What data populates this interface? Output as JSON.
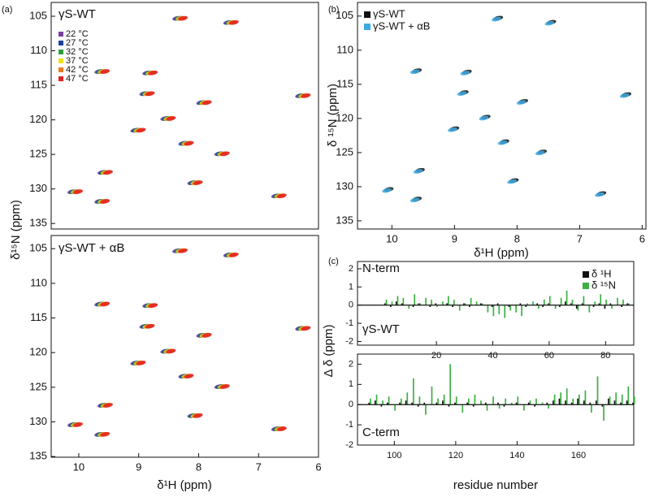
{
  "chart_data": [
    {
      "type": "scatter",
      "panel_label": "(a)",
      "title": "γS-WT",
      "xlim": [
        10.46,
        6
      ],
      "ylim": [
        135.8,
        103
      ],
      "yticks": [
        105,
        110,
        115,
        120,
        125,
        130,
        135
      ],
      "series": [
        {
          "name": "22 °C",
          "color": "#7b3fa0",
          "x": [
            8.36,
            7.51,
            9.66,
            8.91,
            7.96,
            8.56,
            9.06,
            8.26,
            7.66,
            9.61,
            8.11,
            9.66,
            6.31,
            6.71,
            10.11,
            8.86
          ],
          "values": [
            105.3,
            105.9,
            113.0,
            116.2,
            117.5,
            119.8,
            121.5,
            123.4,
            124.9,
            127.6,
            129.1,
            131.8,
            116.5,
            131.0,
            130.4,
            113.2
          ]
        },
        {
          "name": "27 °C",
          "color": "#1f3fa0",
          "x": [
            8.34,
            7.49,
            9.64,
            8.89,
            7.94,
            8.54,
            9.04,
            8.24,
            7.64,
            9.59,
            8.09,
            9.64,
            6.29,
            6.69,
            10.09,
            8.84
          ],
          "values": [
            105.3,
            105.9,
            113.0,
            116.2,
            117.5,
            119.8,
            121.5,
            123.4,
            124.9,
            127.6,
            129.1,
            131.8,
            116.5,
            131.0,
            130.4,
            113.2
          ]
        },
        {
          "name": "32 °C",
          "color": "#2e9e3e",
          "x": [
            8.32,
            7.47,
            9.62,
            8.87,
            7.92,
            8.52,
            9.02,
            8.22,
            7.62,
            9.57,
            8.07,
            9.62,
            6.27,
            6.67,
            10.07,
            8.82
          ],
          "values": [
            105.3,
            105.9,
            113.0,
            116.2,
            117.5,
            119.8,
            121.5,
            123.4,
            124.9,
            127.6,
            129.1,
            131.8,
            116.5,
            131.0,
            130.4,
            113.2
          ]
        },
        {
          "name": "37 °C",
          "color": "#f2e020",
          "x": [
            8.3,
            7.45,
            9.6,
            8.85,
            7.9,
            8.5,
            9.0,
            8.2,
            7.6,
            9.55,
            8.05,
            9.6,
            6.25,
            6.65,
            10.05,
            8.8
          ],
          "values": [
            105.3,
            105.9,
            113.0,
            116.2,
            117.5,
            119.8,
            121.5,
            123.4,
            124.9,
            127.6,
            129.1,
            131.8,
            116.5,
            131.0,
            130.4,
            113.2
          ]
        },
        {
          "name": "42 °C",
          "color": "#f07a20",
          "x": [
            8.28,
            7.43,
            9.58,
            8.83,
            7.88,
            8.48,
            8.98,
            8.18,
            7.58,
            9.53,
            8.03,
            9.58,
            6.23,
            6.63,
            10.03,
            8.78
          ],
          "values": [
            105.3,
            105.9,
            113.0,
            116.2,
            117.5,
            119.8,
            121.5,
            123.4,
            124.9,
            127.6,
            129.1,
            131.8,
            116.5,
            131.0,
            130.4,
            113.2
          ]
        },
        {
          "name": "47 °C",
          "color": "#e02020",
          "x": [
            8.26,
            7.41,
            9.56,
            8.81,
            7.86,
            8.46,
            8.96,
            8.16,
            7.56,
            9.51,
            8.01,
            9.56,
            6.21,
            6.61,
            10.01,
            8.76
          ],
          "values": [
            105.3,
            105.9,
            113.0,
            116.2,
            117.5,
            119.8,
            121.5,
            123.4,
            124.9,
            127.6,
            129.1,
            131.8,
            116.5,
            131.0,
            130.4,
            113.2
          ]
        }
      ]
    },
    {
      "type": "scatter",
      "title": "γS-WT + αB",
      "xlabel": "δ¹H (ppm)",
      "ylabel": "δ¹⁵N (ppm)",
      "xlim": [
        10.46,
        6
      ],
      "ylim": [
        135.1,
        103.1
      ],
      "xticks": [
        10,
        9,
        8,
        7,
        6
      ],
      "yticks": [
        105,
        110,
        115,
        120,
        125,
        130,
        135
      ],
      "series": [
        {
          "color": "#7b3fa0",
          "x": [
            8.36,
            7.51,
            9.66,
            8.91,
            7.96,
            8.56,
            9.06,
            8.26,
            7.66,
            9.61,
            8.11,
            9.66,
            6.31,
            6.71,
            10.11,
            8.86
          ],
          "values": [
            105.3,
            105.9,
            113.0,
            116.2,
            117.5,
            119.8,
            121.5,
            123.4,
            124.9,
            127.6,
            129.1,
            131.8,
            116.5,
            131.0,
            130.4,
            113.2
          ]
        },
        {
          "color": "#1f3fa0",
          "x": [
            8.34,
            7.49,
            9.64,
            8.89,
            7.94,
            8.54,
            9.04,
            8.24,
            7.64,
            9.59,
            8.09,
            9.64,
            6.29,
            6.69,
            10.09,
            8.84
          ],
          "values": [
            105.3,
            105.9,
            113.0,
            116.2,
            117.5,
            119.8,
            121.5,
            123.4,
            124.9,
            127.6,
            129.1,
            131.8,
            116.5,
            131.0,
            130.4,
            113.2
          ]
        },
        {
          "color": "#2e9e3e",
          "x": [
            8.32,
            7.47,
            9.62,
            8.87,
            7.92,
            8.52,
            9.02,
            8.22,
            7.62,
            9.57,
            8.07,
            9.62,
            6.27,
            6.67,
            10.07,
            8.82
          ],
          "values": [
            105.3,
            105.9,
            113.0,
            116.2,
            117.5,
            119.8,
            121.5,
            123.4,
            124.9,
            127.6,
            129.1,
            131.8,
            116.5,
            131.0,
            130.4,
            113.2
          ]
        },
        {
          "color": "#f2e020",
          "x": [
            8.3,
            7.45,
            9.6,
            8.85,
            7.9,
            8.5,
            9.0,
            8.2,
            7.6,
            9.55,
            8.05,
            9.6,
            6.25,
            6.65,
            10.05,
            8.8
          ],
          "values": [
            105.3,
            105.9,
            113.0,
            116.2,
            117.5,
            119.8,
            121.5,
            123.4,
            124.9,
            127.6,
            129.1,
            131.8,
            116.5,
            131.0,
            130.4,
            113.2
          ]
        },
        {
          "color": "#f07a20",
          "x": [
            8.28,
            7.43,
            9.58,
            8.83,
            7.88,
            8.48,
            8.98,
            8.18,
            7.58,
            9.53,
            8.03,
            9.58,
            6.23,
            6.63,
            10.03,
            8.78
          ],
          "values": [
            105.3,
            105.9,
            113.0,
            116.2,
            117.5,
            119.8,
            121.5,
            123.4,
            124.9,
            127.6,
            129.1,
            131.8,
            116.5,
            131.0,
            130.4,
            113.2
          ]
        },
        {
          "color": "#e02020",
          "x": [
            8.26,
            7.41,
            9.56,
            8.81,
            7.86,
            8.46,
            8.96,
            8.16,
            7.56,
            9.51,
            8.01,
            9.56,
            6.21,
            6.61,
            10.01,
            8.76
          ],
          "values": [
            105.3,
            105.9,
            113.0,
            116.2,
            117.5,
            119.8,
            121.5,
            123.4,
            124.9,
            127.6,
            129.1,
            131.8,
            116.5,
            131.0,
            130.4,
            113.2
          ]
        }
      ]
    },
    {
      "type": "scatter",
      "panel_label": "(b)",
      "xlabel": "δ¹H (ppm)",
      "ylabel": "δ ¹⁵N (ppm)",
      "xlim": [
        10.55,
        5.94
      ],
      "ylim": [
        136.2,
        103
      ],
      "xticks": [
        10,
        9,
        8,
        7,
        6
      ],
      "yticks": [
        105,
        110,
        115,
        120,
        125,
        130,
        135
      ],
      "series": [
        {
          "name": "γS-WT",
          "color": "#111111",
          "x": [
            8.3,
            7.45,
            9.6,
            8.85,
            7.9,
            8.5,
            9.0,
            8.2,
            7.6,
            9.55,
            8.05,
            9.6,
            6.25,
            6.65,
            10.05,
            8.8
          ],
          "values": [
            105.3,
            105.9,
            113.0,
            116.2,
            117.5,
            119.8,
            121.5,
            123.4,
            124.9,
            127.6,
            129.1,
            131.8,
            116.5,
            131.0,
            130.4,
            113.2
          ]
        },
        {
          "name": "γS-WT + αB",
          "color": "#3fa9e0",
          "x": [
            8.33,
            7.48,
            9.63,
            8.88,
            7.93,
            8.53,
            9.03,
            8.23,
            7.63,
            9.58,
            8.08,
            9.63,
            6.28,
            6.68,
            10.08,
            8.83
          ],
          "values": [
            105.45,
            106.05,
            113.15,
            116.35,
            117.65,
            119.95,
            121.65,
            123.55,
            125.05,
            127.75,
            129.25,
            131.95,
            116.65,
            131.15,
            130.55,
            113.35
          ]
        }
      ]
    },
    {
      "type": "bar",
      "panel_label": "(c)",
      "ylabel": "Δ δ (ppm)",
      "annotations": [
        "N-term",
        "γS-WT"
      ],
      "xlim": [
        -8,
        90
      ],
      "ylim": [
        -2.2,
        2.4
      ],
      "xticks": [
        20,
        40,
        60,
        80
      ],
      "yticks": [
        -2,
        -1,
        0,
        1,
        2
      ],
      "x": [
        2,
        4,
        6,
        8,
        10,
        12,
        14,
        16,
        18,
        20,
        22,
        24,
        26,
        28,
        30,
        32,
        34,
        36,
        38,
        40,
        42,
        44,
        46,
        48,
        50,
        52,
        54,
        56,
        58,
        60,
        62,
        64,
        66,
        68,
        70,
        72,
        74,
        76,
        78,
        80,
        82,
        84,
        86,
        88
      ],
      "series": [
        {
          "name": "δ ¹H",
          "color": "#111111",
          "values": [
            0.1,
            -0.1,
            0.2,
            0.1,
            0,
            -0.1,
            0.1,
            0,
            -0.1,
            0.1,
            0,
            0.1,
            -0.1,
            0,
            0.1,
            -0.1,
            0,
            0.1,
            0,
            -0.1,
            0.1,
            0,
            -0.1,
            0,
            0.1,
            -0.1,
            0,
            0.1,
            -0.1,
            0.1,
            0,
            -0.1,
            0.2,
            0.1,
            -0.2,
            0.1,
            0,
            -0.1,
            0.1,
            -0.2,
            0.1,
            0,
            -0.1,
            0.1
          ]
        },
        {
          "name": "δ ¹⁵N",
          "color": "#3cb043",
          "values": [
            0.3,
            0.2,
            0.5,
            0.4,
            -0.2,
            0.6,
            0.1,
            0.4,
            0.3,
            -0.1,
            0.2,
            0.5,
            0.3,
            -0.3,
            0.1,
            0.4,
            0.2,
            0.1,
            -0.4,
            -0.6,
            -0.5,
            -0.7,
            -0.3,
            -0.4,
            -0.6,
            0.1,
            0.2,
            -0.2,
            0.3,
            0.5,
            -0.2,
            0.4,
            0.8,
            0.3,
            -0.3,
            0.5,
            -0.4,
            0.2,
            0.6,
            0.3,
            -0.2,
            0.4,
            0.3,
            0.1
          ]
        }
      ]
    },
    {
      "type": "bar",
      "xlabel": "residue number",
      "annotations": [
        "C-term"
      ],
      "xlim": [
        88,
        178
      ],
      "ylim": [
        -2.0,
        2.5
      ],
      "xticks": [
        100,
        120,
        140,
        160
      ],
      "yticks": [
        -2,
        -1,
        0,
        1,
        2
      ],
      "x": [
        92,
        94,
        96,
        98,
        100,
        102,
        104,
        106,
        108,
        110,
        112,
        114,
        116,
        118,
        120,
        122,
        124,
        126,
        128,
        130,
        132,
        134,
        136,
        138,
        140,
        142,
        144,
        146,
        148,
        150,
        152,
        154,
        156,
        158,
        160,
        162,
        164,
        166,
        168,
        170,
        172,
        174,
        176,
        178
      ],
      "series": [
        {
          "color": "#111111",
          "values": [
            0.1,
            0.2,
            -0.1,
            0.1,
            0,
            0.1,
            0.2,
            0.1,
            -0.1,
            0.1,
            0,
            0.1,
            0.2,
            -0.1,
            0.1,
            0,
            0.1,
            -0.1,
            0,
            0.1,
            0,
            0.1,
            -0.1,
            0,
            0.1,
            0,
            0.1,
            -0.1,
            0,
            0.1,
            0.2,
            0.3,
            0.2,
            0.1,
            0.3,
            0.2,
            0.1,
            0.2,
            -0.1,
            0.3,
            0.2,
            0.1,
            0.2,
            0.1
          ]
        },
        {
          "color": "#3cb043",
          "values": [
            0.3,
            0.5,
            0.2,
            0.4,
            -0.3,
            0.3,
            0.6,
            1.3,
            0.4,
            -0.5,
            0.9,
            0.3,
            0.5,
            2.0,
            0.4,
            -0.4,
            0.3,
            0.5,
            0.2,
            -0.3,
            0.4,
            -0.2,
            0.3,
            0.1,
            0.4,
            -0.3,
            0.2,
            0.3,
            0.1,
            -0.2,
            0.5,
            0.6,
            0.8,
            0.3,
            0.5,
            0.7,
            -0.4,
            1.4,
            -0.8,
            0.4,
            0.6,
            0.5,
            0.9,
            0.4
          ]
        }
      ]
    }
  ]
}
